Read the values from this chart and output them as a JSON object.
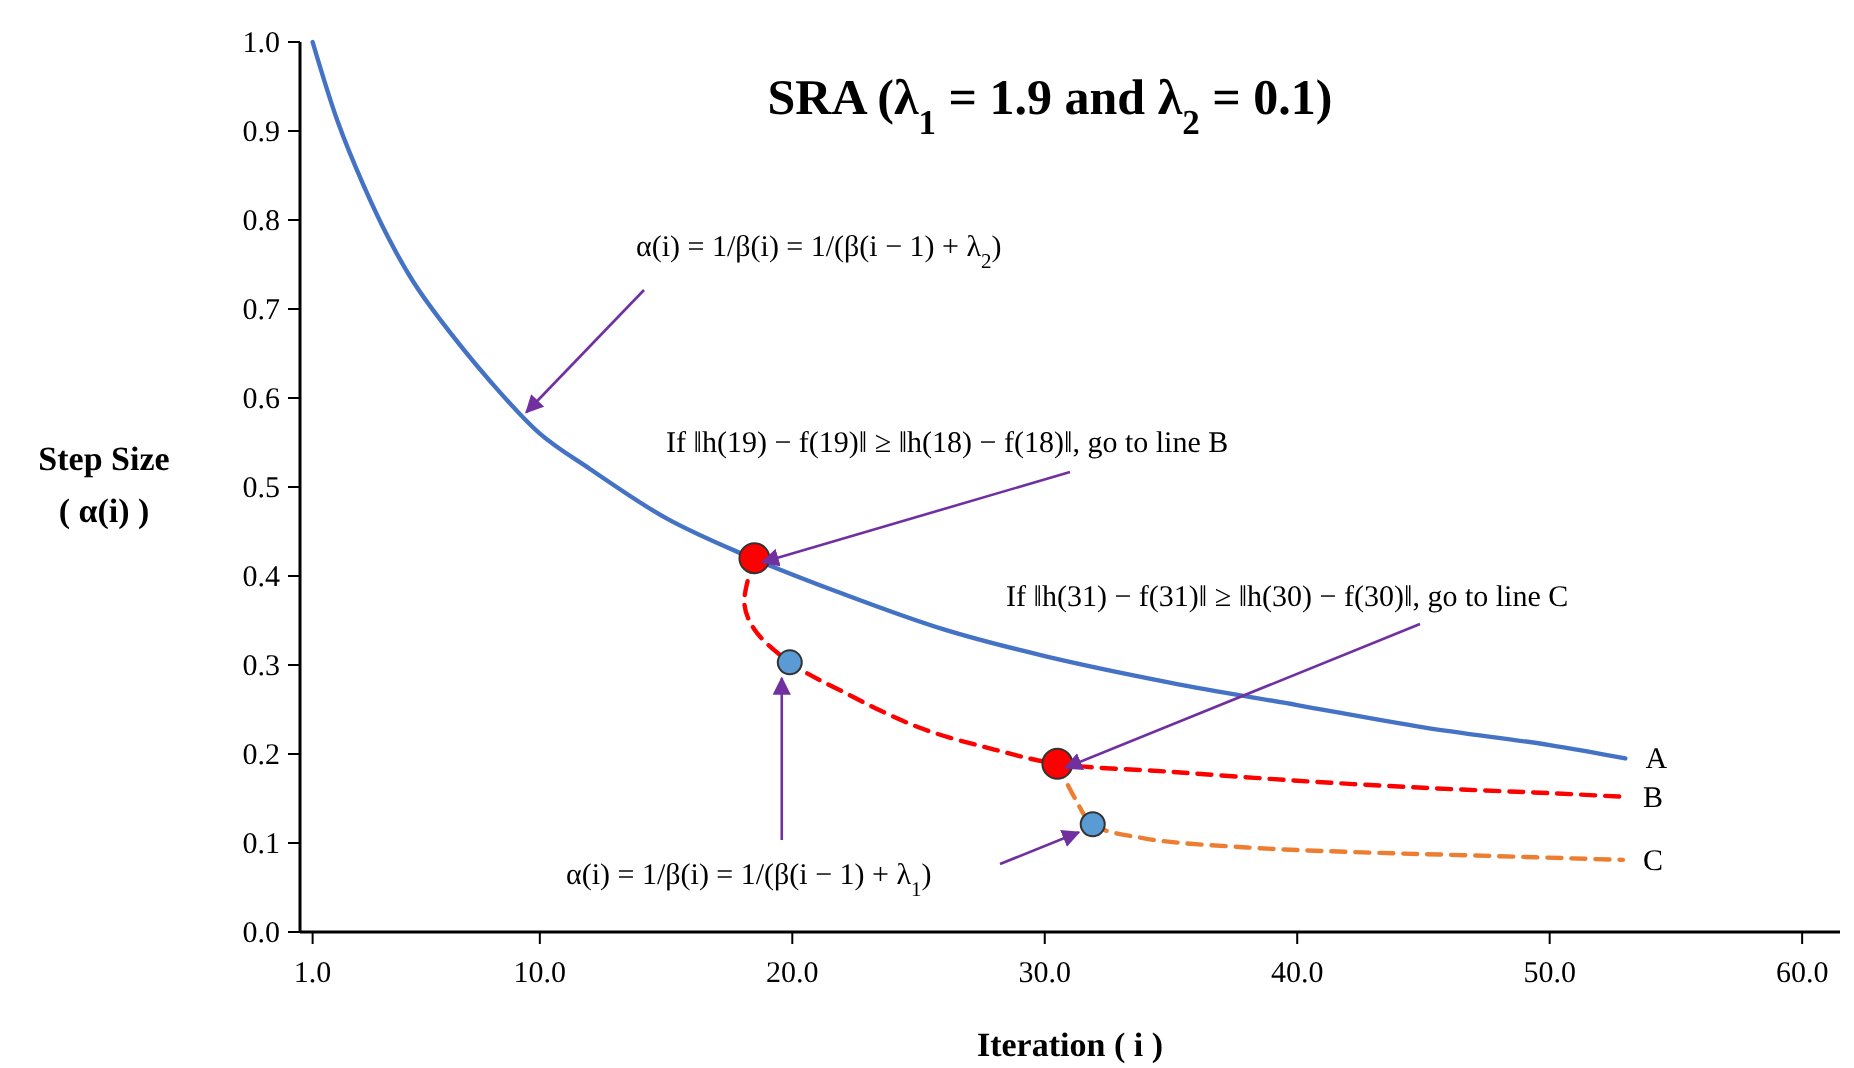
{
  "chart_data": {
    "type": "line",
    "title": "SRA (λ$_{1}$ = 1.9 and λ$_{2}$ = 0.1)",
    "xlabel": "Iteration ( i )",
    "ylabel": "Step Size\n( α(i) )",
    "xlim": [
      0.5,
      61.5
    ],
    "ylim": [
      0,
      1
    ],
    "xticks": [
      {
        "value": 1,
        "label": "1.0"
      },
      {
        "value": 10,
        "label": "10.0"
      },
      {
        "value": 20,
        "label": "20.0"
      },
      {
        "value": 30,
        "label": "30.0"
      },
      {
        "value": 40,
        "label": "40.0"
      },
      {
        "value": 50,
        "label": "50.0"
      },
      {
        "value": 60,
        "label": "60.0"
      }
    ],
    "yticks": [
      {
        "value": 0,
        "label": "0.0"
      },
      {
        "value": 0.1,
        "label": "0.1"
      },
      {
        "value": 0.2,
        "label": "0.2"
      },
      {
        "value": 0.3,
        "label": "0.3"
      },
      {
        "value": 0.4,
        "label": "0.4"
      },
      {
        "value": 0.5,
        "label": "0.5"
      },
      {
        "value": 0.6,
        "label": "0.6"
      },
      {
        "value": 0.7,
        "label": "0.7"
      },
      {
        "value": 0.8,
        "label": "0.8"
      },
      {
        "value": 0.9,
        "label": "0.9"
      },
      {
        "value": 1,
        "label": "1.0"
      }
    ],
    "grid": false,
    "legend": false,
    "marker": "none",
    "series": [
      {
        "name": "A",
        "color": "#4472c4",
        "line_style": "solid",
        "x": [
          1,
          2,
          3,
          4,
          5,
          6,
          8,
          10,
          12,
          15,
          18,
          22,
          26,
          30,
          35,
          40,
          45,
          50,
          53
        ],
        "values": [
          1,
          0.91,
          0.84,
          0.78,
          0.73,
          0.69,
          0.62,
          0.56,
          0.52,
          0.465,
          0.425,
          0.38,
          0.34,
          0.31,
          0.28,
          0.255,
          0.23,
          0.21,
          0.195
        ]
      },
      {
        "name": "B",
        "color": "#ff0000",
        "line_style": "dashed",
        "x": [
          18.5,
          18.1,
          18.5,
          19.9,
          22,
          25,
          28,
          30.5,
          35,
          40,
          45,
          50,
          52.9
        ],
        "values": [
          0.42,
          0.37,
          0.34,
          0.303,
          0.27,
          0.23,
          0.205,
          0.189,
          0.18,
          0.17,
          0.162,
          0.156,
          0.152
        ]
      },
      {
        "name": "C",
        "color": "#ed7d31",
        "line_style": "dashed",
        "x": [
          30.5,
          31.2,
          31.9,
          34,
          38,
          42,
          47,
          52.9
        ],
        "values": [
          0.189,
          0.15,
          0.121,
          0.105,
          0.095,
          0.09,
          0.086,
          0.081
        ]
      },
      {
        "type": "scatter",
        "color": "#ff0000",
        "marker": "circle",
        "x": [
          18.5,
          30.5
        ],
        "values": [
          0.42,
          0.189
        ]
      },
      {
        "type": "scatter",
        "color": "#5b9bd5",
        "marker": "circle",
        "x": [
          19.9,
          31.9
        ],
        "values": [
          0.303,
          0.121
        ]
      }
    ],
    "annotations": [
      {
        "text": "α(i) = 1/β(i) = 1/(β(i − 1) + λ$_{2}$)",
        "x": 9.15,
        "y": 0.575
      },
      {
        "text": "If ‖h(19) − f(19)‖ ≥ ‖h(18) − f(18)‖, go to line B",
        "x": 18.5,
        "y": 0.42
      },
      {
        "text": "If ‖h(31) − f(31)‖ ≥ ‖h(30) − f(30)‖, go to line C",
        "x": 30.5,
        "y": 0.189
      },
      {
        "text": "α(i) = 1/β(i) = 1/(β(i − 1) + λ$_{1}$)",
        "x": 19.9,
        "y": 0.303
      }
    ]
  }
}
